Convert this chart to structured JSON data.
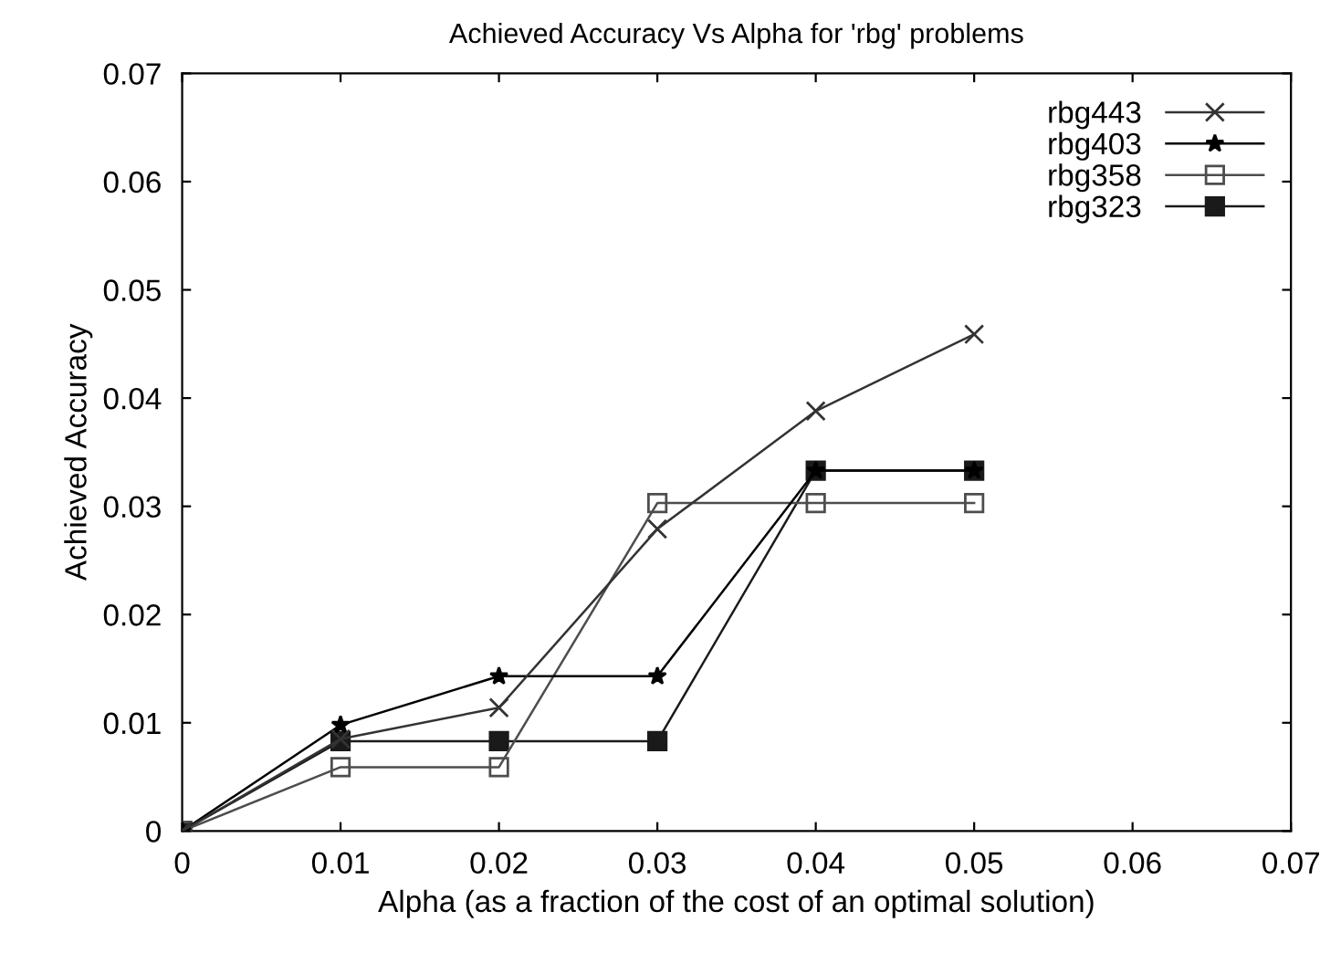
{
  "chart_data": {
    "type": "line",
    "title": "Achieved Accuracy Vs Alpha for 'rbg' problems",
    "xlabel": "Alpha (as a fraction of the cost of an optimal solution)",
    "ylabel": "Achieved Accuracy",
    "x": [
      0,
      0.01,
      0.02,
      0.03,
      0.04,
      0.05
    ],
    "series": [
      {
        "name": "rbg443",
        "color": "#333333",
        "marker": "cross",
        "values": [
          0,
          0.0085,
          0.0114,
          0.0279,
          0.0388,
          0.0459
        ]
      },
      {
        "name": "rbg403",
        "color": "#000000",
        "marker": "star",
        "values": [
          0,
          0.0098,
          0.0143,
          0.0143,
          0.0333,
          0.0333
        ]
      },
      {
        "name": "rbg358",
        "color": "#4d4d4d",
        "marker": "square",
        "values": [
          0,
          0.0059,
          0.0059,
          0.0303,
          0.0303,
          0.0303
        ]
      },
      {
        "name": "rbg323",
        "color": "#1a1a1a",
        "marker": "square",
        "values": [
          0,
          0.0083,
          0.0083,
          0.0083,
          0.0333,
          0.0333
        ]
      }
    ],
    "xlim": [
      0,
      0.07
    ],
    "ylim": [
      0,
      0.07
    ],
    "xticks": [
      0,
      0.01,
      0.02,
      0.03,
      0.04,
      0.05,
      0.06,
      0.07
    ],
    "yticks": [
      0,
      0.01,
      0.02,
      0.03,
      0.04,
      0.05,
      0.06,
      0.07
    ],
    "grid": false,
    "legend": "top right",
    "line_style": "solid"
  }
}
